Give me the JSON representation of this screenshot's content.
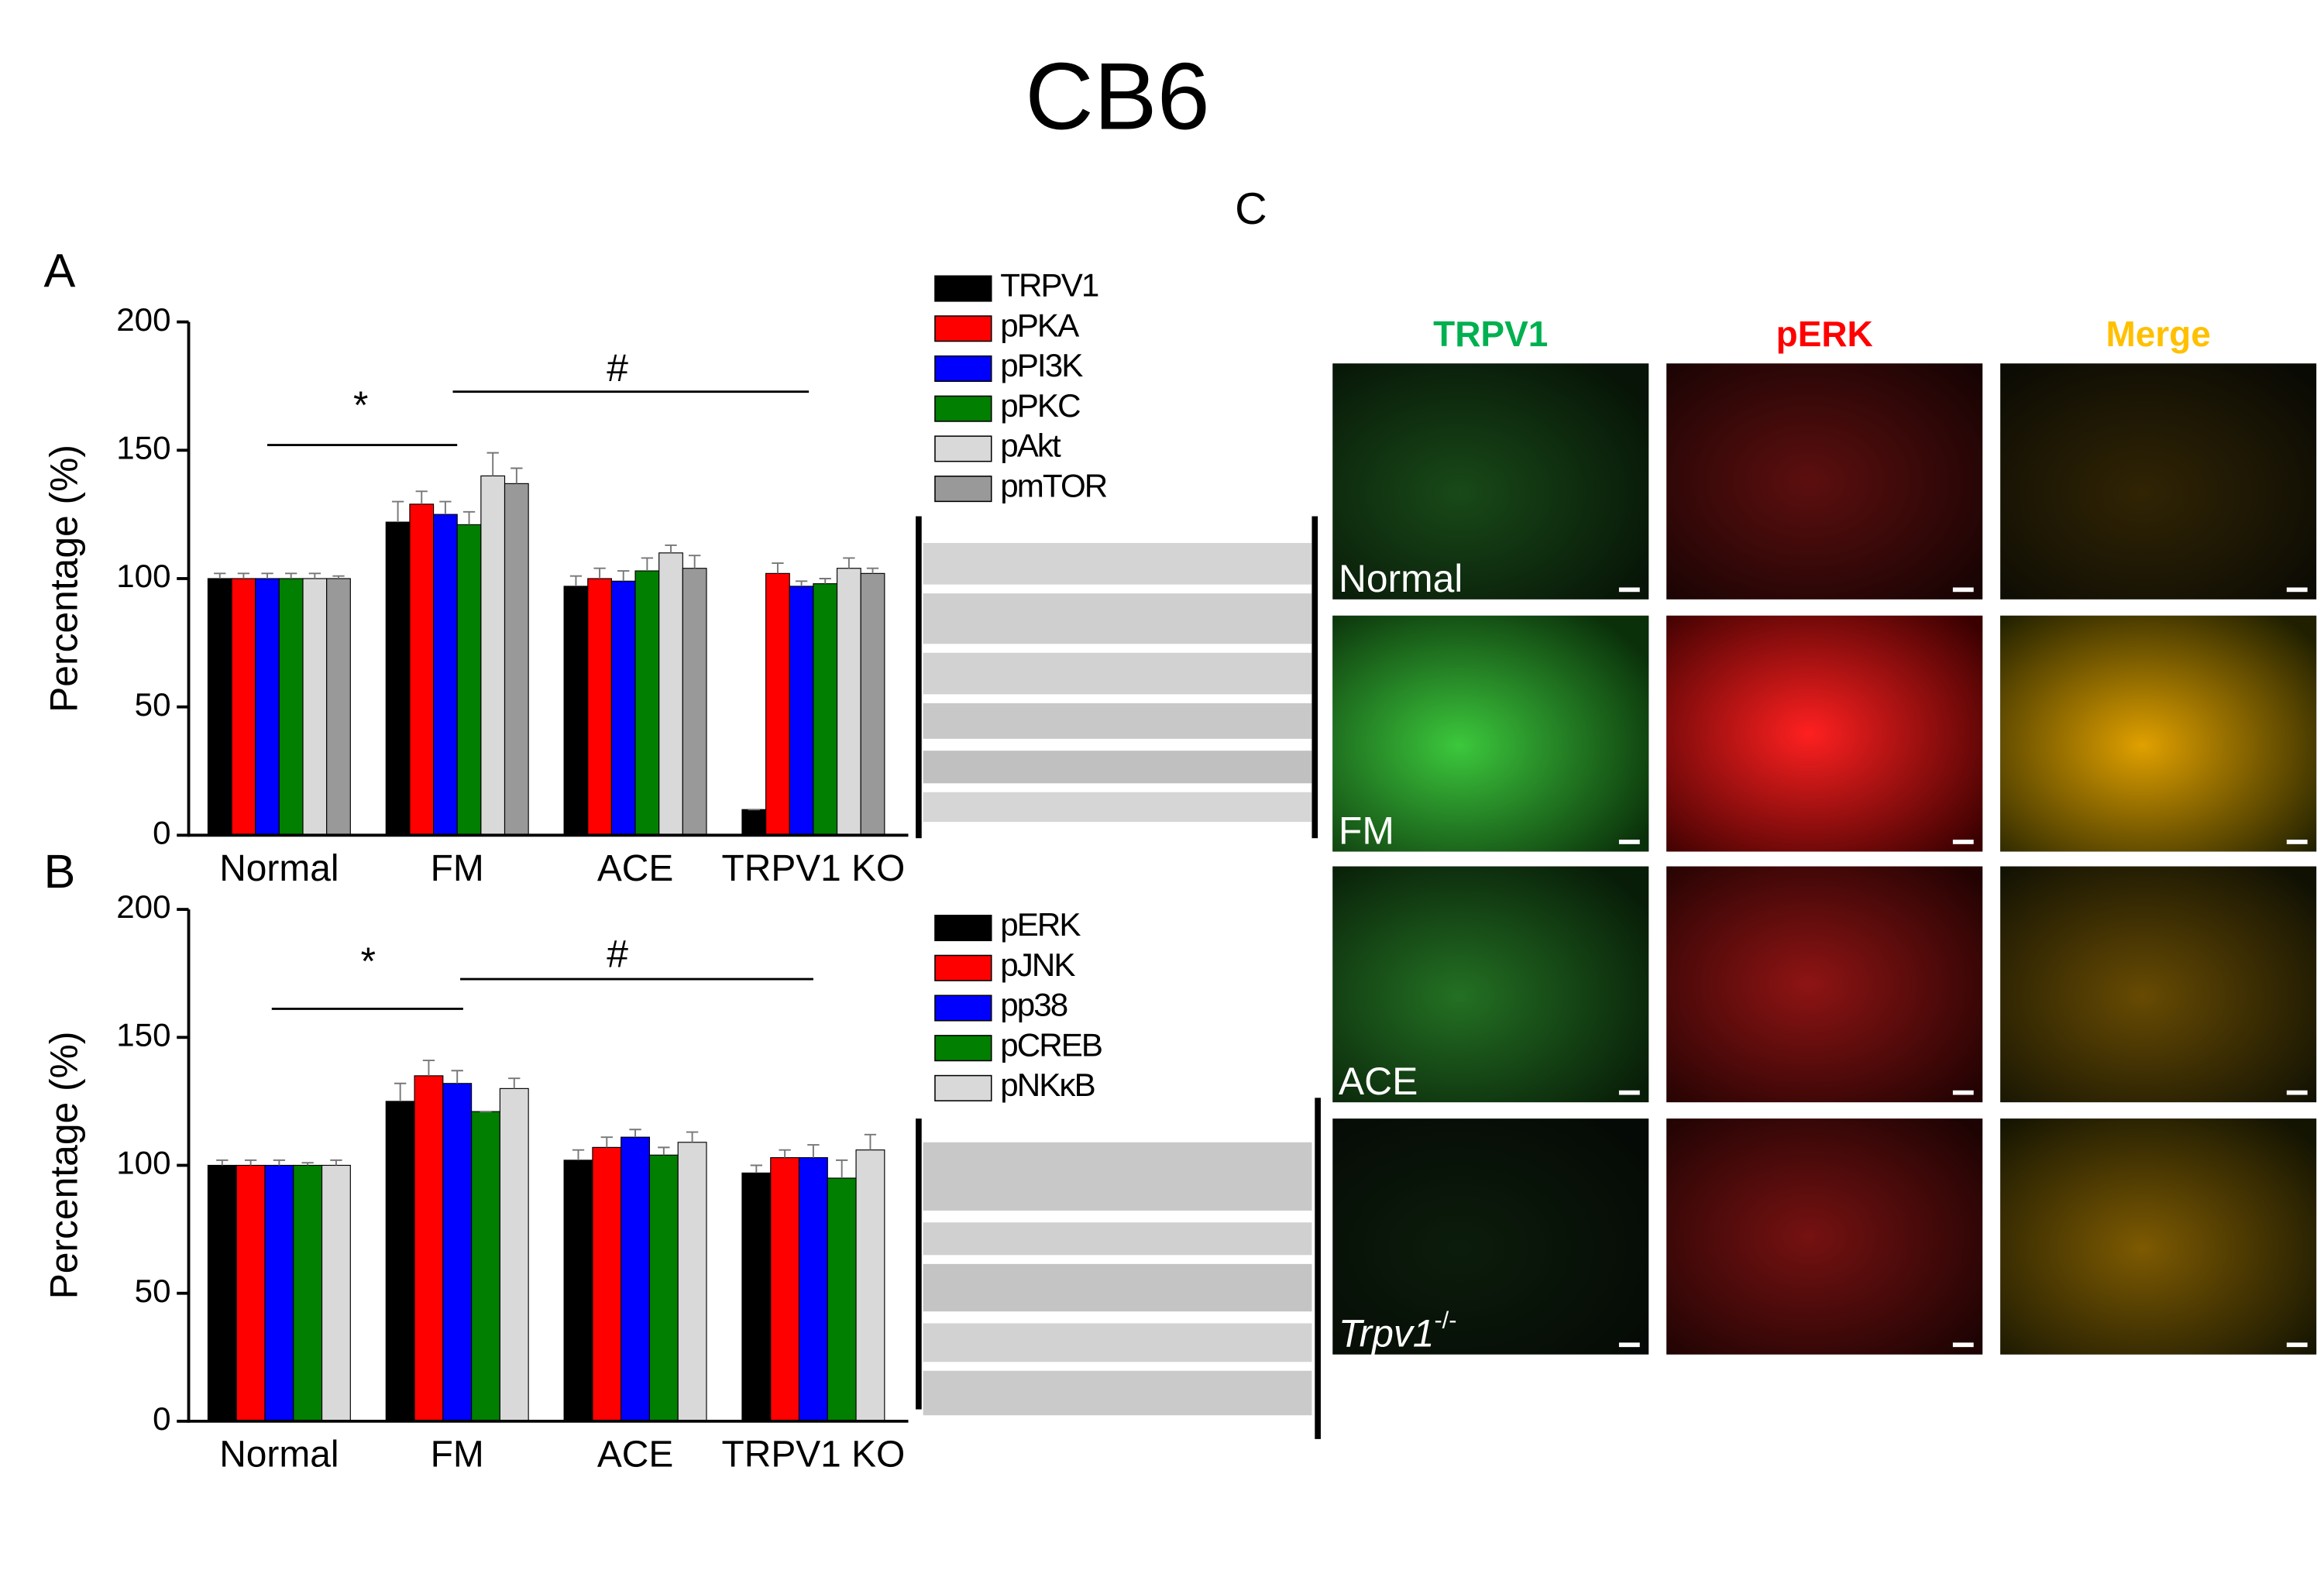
{
  "title": "CB6",
  "panels": [
    "A",
    "B",
    "C"
  ],
  "images": {
    "columns": [
      "TRPV1",
      "pERK",
      "Merge"
    ],
    "rows": [
      {
        "label": "Normal"
      },
      {
        "label": "FM"
      },
      {
        "label": "ACE"
      },
      {
        "label": "Trpv1",
        "superscript": "-/-"
      }
    ]
  },
  "chart_data": [
    {
      "type": "bar",
      "ylabel": "Percentage (%)",
      "categories": [
        "Normal",
        "FM",
        "ACE",
        "TRPV1 KO"
      ],
      "ylim": [
        0,
        200
      ],
      "yticks": [
        0,
        50,
        100,
        150,
        200
      ],
      "annotations": [
        "*",
        "#"
      ],
      "series": [
        {
          "name": "TRPV1",
          "color": "#000000",
          "values": [
            100,
            122,
            97,
            10
          ],
          "errors": [
            2,
            8,
            4,
            0
          ]
        },
        {
          "name": "pPKA",
          "color": "#ff0000",
          "values": [
            100,
            129,
            100,
            102
          ],
          "errors": [
            2,
            5,
            4,
            4
          ]
        },
        {
          "name": "pPI3K",
          "color": "#0000ff",
          "values": [
            100,
            125,
            99,
            97
          ],
          "errors": [
            2,
            5,
            4,
            2
          ]
        },
        {
          "name": "pPKC",
          "color": "#007f00",
          "values": [
            100,
            121,
            103,
            98
          ],
          "errors": [
            2,
            5,
            5,
            2
          ]
        },
        {
          "name": "pAkt",
          "color": "#d9d9d9",
          "values": [
            100,
            140,
            110,
            104
          ],
          "errors": [
            2,
            9,
            3,
            4
          ]
        },
        {
          "name": "pmTOR",
          "color": "#999999",
          "values": [
            100,
            137,
            104,
            102
          ],
          "errors": [
            1,
            6,
            5,
            2
          ]
        }
      ]
    },
    {
      "type": "bar",
      "ylabel": "Percentage (%)",
      "categories": [
        "Normal",
        "FM",
        "ACE",
        "TRPV1 KO"
      ],
      "ylim": [
        0,
        200
      ],
      "yticks": [
        0,
        50,
        100,
        150,
        200
      ],
      "annotations": [
        "*",
        "#"
      ],
      "series": [
        {
          "name": "pERK",
          "color": "#000000",
          "values": [
            100,
            125,
            102,
            97
          ],
          "errors": [
            2,
            7,
            4,
            3
          ]
        },
        {
          "name": "pJNK",
          "color": "#ff0000",
          "values": [
            100,
            135,
            107,
            103
          ],
          "errors": [
            2,
            6,
            4,
            3
          ]
        },
        {
          "name": "pp38",
          "color": "#0000ff",
          "values": [
            100,
            132,
            111,
            103
          ],
          "errors": [
            2,
            5,
            3,
            5
          ]
        },
        {
          "name": "pCREB",
          "color": "#007f00",
          "values": [
            100,
            121,
            104,
            95
          ],
          "errors": [
            1,
            0,
            3,
            7
          ]
        },
        {
          "name": "pNKκB",
          "color": "#d9d9d9",
          "values": [
            100,
            130,
            109,
            106
          ],
          "errors": [
            2,
            4,
            4,
            6
          ]
        }
      ]
    }
  ]
}
